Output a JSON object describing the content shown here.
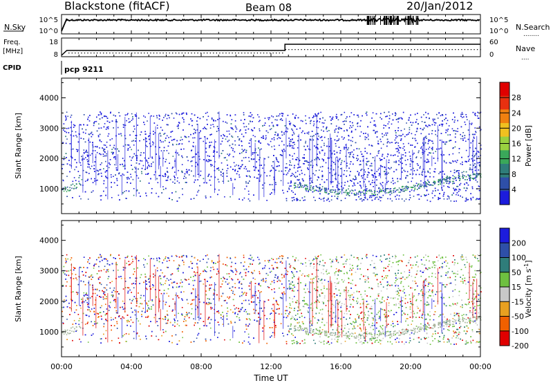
{
  "header": {
    "left": "Blackstone (fitACF)",
    "center": "Beam 08",
    "right": "20/Jan/2012"
  },
  "time_axis": {
    "label": "Time UT",
    "ticks": [
      "00:00",
      "04:00",
      "08:00",
      "12:00",
      "16:00",
      "20:00",
      "00:00"
    ],
    "tick_hours": [
      0,
      4,
      8,
      12,
      16,
      20,
      24
    ]
  },
  "nsky_panel": {
    "left_label": "N.Sky",
    "left_ticks": [
      "10^5",
      "10^0"
    ],
    "right_ticks": [
      "10^5",
      "10^0"
    ],
    "right_label": "N.Search",
    "right_legend_line": "........"
  },
  "freq_panel": {
    "left_label_1": "Freq.",
    "left_label_2": "[MHz]",
    "left_ticks": [
      "18",
      "8"
    ],
    "right_ticks": [
      "60",
      "0"
    ],
    "right_label": "Nave",
    "right_legend_line": "....",
    "cpid_label": "CPID",
    "cpid_value": "pcp 9211"
  },
  "colors": {
    "power": [
      "#1c1cdc",
      "#2e4fa8",
      "#2f7d7a",
      "#3aa85a",
      "#9ad040",
      "#f0c020",
      "#f08010",
      "#e83010",
      "#e00000"
    ],
    "velocity": [
      "#1c1cdc",
      "#2e4fa8",
      "#2f7d7a",
      "#6ec040",
      "#c8c8c8",
      "#e8a020",
      "#f06000",
      "#e00000"
    ],
    "ground_scatter": "#a8b8a0"
  },
  "chart_data": [
    {
      "type": "heatmap",
      "title": "",
      "xlabel": "Time UT",
      "ylabel": "Slant Range [km]",
      "x_range_hours": [
        0,
        24
      ],
      "y_range_km": [
        180,
        4650
      ],
      "y_ticks": [
        1000,
        2000,
        3000,
        4000
      ],
      "colorbar": {
        "label": "Power [dB]",
        "ticks": [
          "4",
          "8",
          "12",
          "16",
          "20",
          "24",
          "28"
        ],
        "range": [
          0,
          30
        ]
      },
      "features": {
        "data_range_km": [
          600,
          3550
        ],
        "dense_period_hours": [
          13.0,
          24.0
        ],
        "scatter_band_km": [
          [
            13.2,
            1150
          ],
          [
            14.5,
            1000
          ],
          [
            16,
            900
          ],
          [
            17.5,
            880
          ],
          [
            19,
            960
          ],
          [
            20.5,
            1100
          ],
          [
            22,
            1300
          ],
          [
            24,
            1450
          ]
        ],
        "early_band_km": [
          [
            0,
            950
          ],
          [
            0.5,
            1050
          ],
          [
            1.2,
            1250
          ]
        ]
      }
    },
    {
      "type": "heatmap",
      "title": "",
      "xlabel": "Time UT",
      "ylabel": "Slant Range [km]",
      "x_range_hours": [
        0,
        24
      ],
      "y_range_km": [
        180,
        4650
      ],
      "y_ticks": [
        1000,
        2000,
        3000,
        4000
      ],
      "colorbar": {
        "label": "Velocity [m s^-1]",
        "ticks": [
          "200",
          "100",
          "50",
          "15",
          "-15",
          "-50",
          "-100",
          "-200"
        ],
        "range": [
          -250,
          250
        ]
      },
      "features": {
        "data_range_km": [
          600,
          3550
        ],
        "dense_period_hours": [
          13.0,
          24.0
        ]
      }
    },
    {
      "type": "line",
      "title": "",
      "series": [
        {
          "name": "N.Sky",
          "x": [
            0,
            0.3,
            24
          ],
          "y_log10": [
            0,
            4.8,
            4.8
          ]
        }
      ]
    },
    {
      "type": "line",
      "title": "",
      "series": [
        {
          "name": "Freq.",
          "x": [
            0,
            0.4,
            12.8,
            12.8,
            24
          ],
          "y": [
            8,
            10.5,
            10.5,
            16.5,
            16.5
          ]
        },
        {
          "name": "Nave",
          "x": [
            0.4,
            12.8,
            12.8,
            24
          ],
          "y": [
            4,
            4,
            20,
            20
          ]
        }
      ]
    }
  ]
}
